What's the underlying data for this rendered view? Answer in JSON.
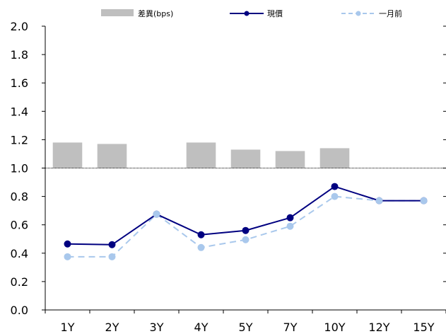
{
  "chart_data": {
    "type": "bar+line",
    "categories": [
      "1Y",
      "2Y",
      "3Y",
      "4Y",
      "5Y",
      "7Y",
      "10Y",
      "12Y",
      "15Y"
    ],
    "ylim": [
      0,
      2.0
    ],
    "yticks": [
      "0.0",
      "0.2",
      "0.4",
      "0.6",
      "0.8",
      "1.0",
      "1.2",
      "1.4",
      "1.6",
      "1.8",
      "2.0"
    ],
    "bar_baseline": 1.0,
    "series": [
      {
        "name": "差異(bps)",
        "kind": "bar",
        "color": "#bfbfbf",
        "values": [
          1.18,
          1.17,
          null,
          1.18,
          1.13,
          1.12,
          1.14,
          null,
          null
        ]
      },
      {
        "name": "現價",
        "kind": "line",
        "color": "#000080",
        "values": [
          0.465,
          0.46,
          0.675,
          0.53,
          0.56,
          0.65,
          0.87,
          0.77,
          0.77
        ]
      },
      {
        "name": "一月前",
        "kind": "line-dashed",
        "color": "#a9c8ec",
        "values": [
          0.375,
          0.375,
          0.675,
          0.44,
          0.495,
          0.59,
          0.8,
          0.77,
          0.77
        ]
      }
    ]
  }
}
